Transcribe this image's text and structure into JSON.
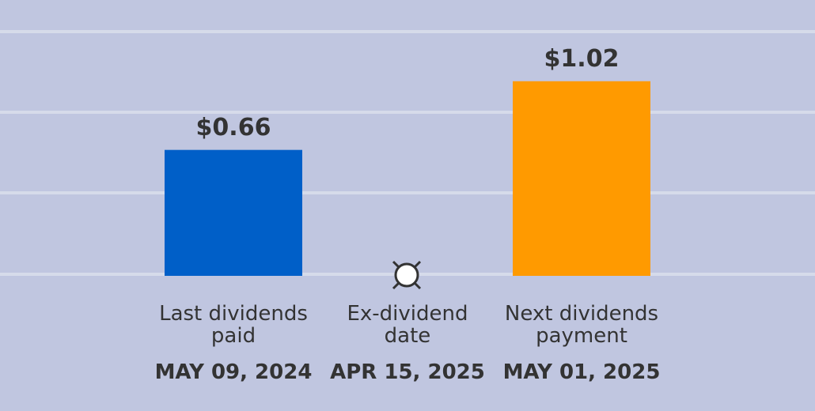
{
  "chart_data": {
    "type": "bar",
    "categories": [
      "Last dividends paid",
      "Ex-dividend date",
      "Next dividends payment"
    ],
    "dates": [
      "MAY 09, 2024",
      "APR 15, 2025",
      "MAY 01, 2025"
    ],
    "values": [
      0.66,
      null,
      1.02
    ],
    "value_labels": [
      "$0.66",
      null,
      "$1.02"
    ],
    "colors": [
      "#005fc8",
      null,
      "#ff9a00"
    ],
    "ylim": [
      0,
      1.28
    ]
  }
}
